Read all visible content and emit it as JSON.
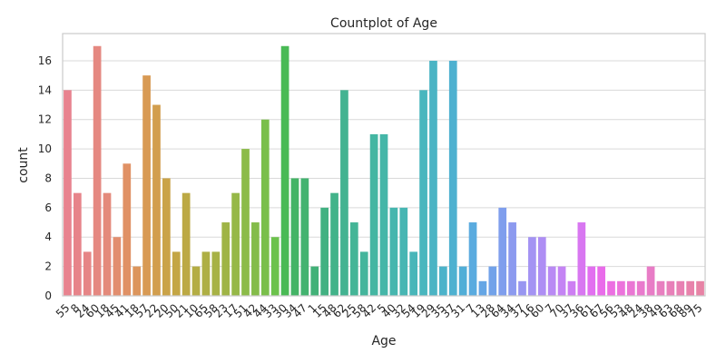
{
  "chart_data": {
    "type": "bar",
    "title": "Countplot of Age",
    "xlabel": "Age",
    "ylabel": "count",
    "ylim": [
      0,
      17.85
    ],
    "yticks": [
      0,
      2,
      4,
      6,
      8,
      10,
      12,
      14,
      16
    ],
    "grid": true,
    "categories": [
      "55",
      "8",
      "24",
      "60",
      "18",
      "45",
      "41",
      "18",
      "57",
      "22",
      "20",
      "50",
      "21",
      "10",
      "65",
      "58",
      "23",
      "17",
      "51",
      "42",
      "44",
      "33",
      "30",
      "34",
      "47",
      "1",
      "15",
      "48",
      "62",
      "25",
      "58",
      "42",
      "5",
      "40",
      "32",
      "54",
      "19",
      "29",
      "35",
      "37",
      "31",
      "7",
      "13",
      "28",
      "64",
      "34",
      "37",
      "16",
      "60",
      "7",
      "70",
      "37",
      "36",
      "61",
      "67",
      "56",
      "53",
      "48",
      "24",
      "38",
      "49",
      "63",
      "68",
      "89",
      "75"
    ],
    "values": [
      14,
      7,
      3,
      17,
      7,
      4,
      9,
      2,
      15,
      13,
      8,
      3,
      7,
      2,
      3,
      3,
      5,
      7,
      10,
      5,
      12,
      4,
      17,
      8,
      8,
      2,
      6,
      7,
      14,
      5,
      3,
      11,
      11,
      6,
      6,
      3,
      14,
      16,
      2,
      16,
      2,
      5,
      1,
      2,
      6,
      5,
      1,
      4,
      4,
      2,
      2,
      1,
      5,
      2,
      2,
      1,
      1,
      1,
      1,
      2,
      1,
      1,
      1,
      1,
      1
    ],
    "colors": [
      "#e8838f",
      "#e7848a",
      "#e68586",
      "#e58881",
      "#e48a7b",
      "#e28e6f",
      "#e09165",
      "#dc955c",
      "#d89a54",
      "#d29e4e",
      "#caa348",
      "#c4a645",
      "#bca944",
      "#b4ad44",
      "#aeaf44",
      "#a7b245",
      "#9fb446",
      "#96b848",
      "#8cbb49",
      "#84bc4a",
      "#7abf4b",
      "#6cc24c",
      "#49ba55",
      "#44b466",
      "#43b370",
      "#42b178",
      "#42b182",
      "#42b38a",
      "#43b391",
      "#44b597",
      "#44b59c",
      "#44b6a2",
      "#45b6a8",
      "#46b6ae",
      "#47b6b3",
      "#48b6b9",
      "#49b6be",
      "#4bb4c4",
      "#4cb3ca",
      "#4eb1d0",
      "#51aed7",
      "#5aabdf",
      "#65a6e5",
      "#72a2e9",
      "#7f9eed",
      "#8c9aef",
      "#9896f1",
      "#a493f3",
      "#ae8ef4",
      "#b98af4",
      "#c484f4",
      "#cd7ef3",
      "#d877f1",
      "#e26ff0",
      "#e96cea",
      "#ec6fe2",
      "#ec73dc",
      "#ea77d4",
      "#e97acd",
      "#e87cc6",
      "#e87fc0",
      "#e880b9",
      "#e881b3",
      "#e882ab",
      "#e783a5"
    ]
  }
}
